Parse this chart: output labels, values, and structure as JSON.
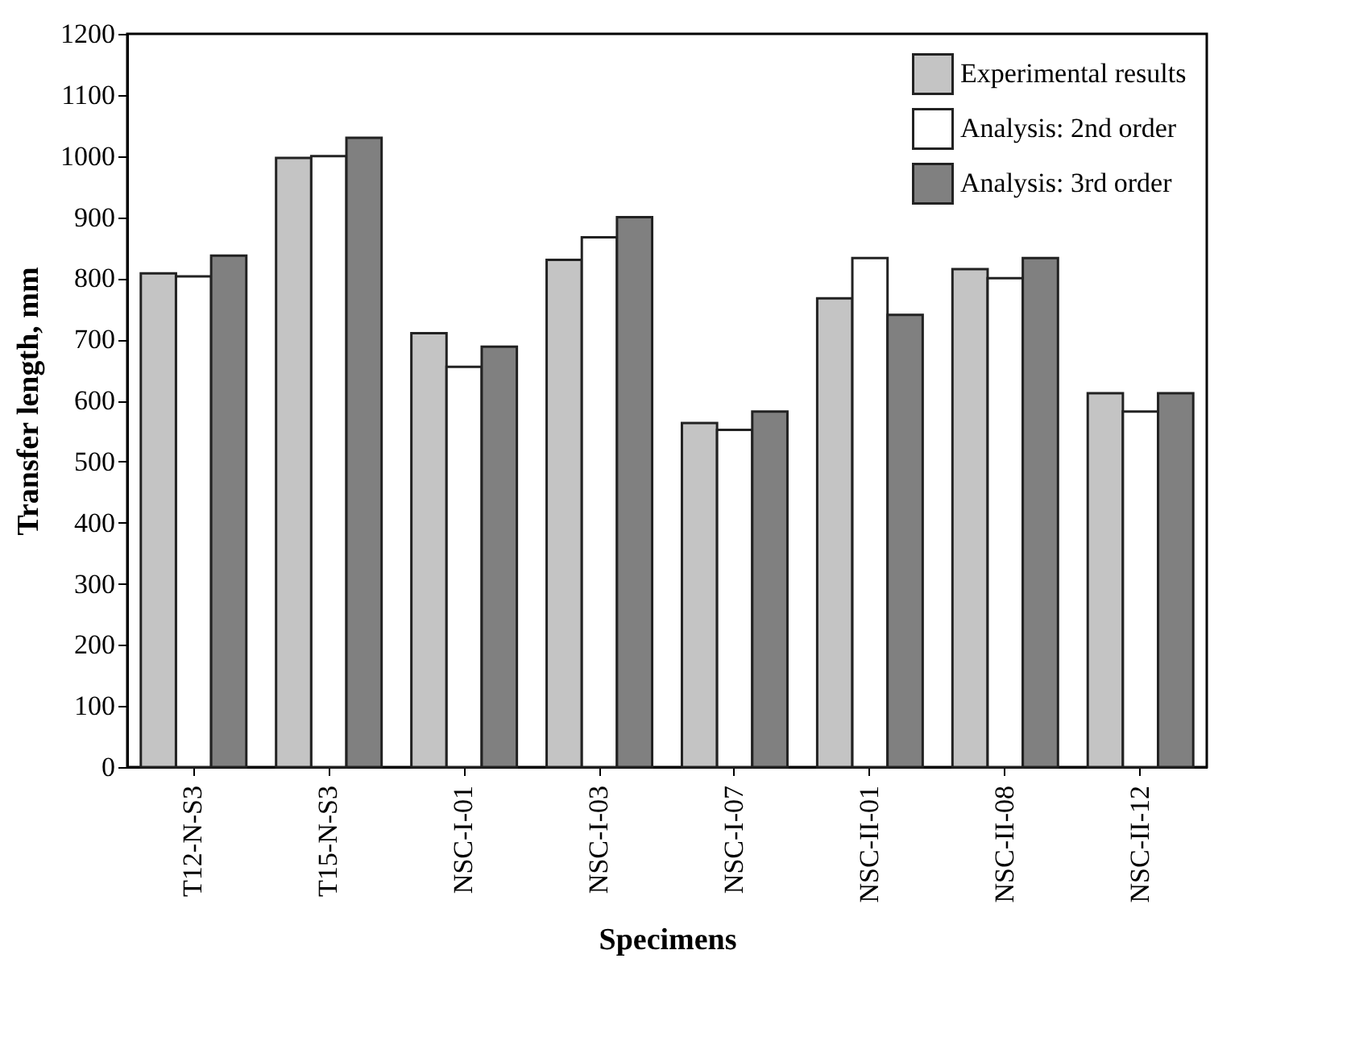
{
  "chart_data": {
    "type": "bar",
    "xlabel": "Specimens",
    "ylabel": "Transfer length, mm",
    "categories": [
      "T12-N-S3",
      "T15-N-S3",
      "NSC-I-01",
      "NSC-I-03",
      "NSC-I-07",
      "NSC-II-01",
      "NSC-II-08",
      "NSC-II-12"
    ],
    "series": [
      {
        "name": "Experimental results",
        "color": "#c4c4c4",
        "values": [
          808,
          997,
          710,
          830,
          563,
          767,
          815,
          612
        ]
      },
      {
        "name": "Analysis: 2nd order",
        "color": "#ffffff",
        "values": [
          803,
          1000,
          655,
          867,
          552,
          833,
          800,
          582
        ]
      },
      {
        "name": "Analysis: 3rd order",
        "color": "#808080",
        "values": [
          837,
          1030,
          688,
          900,
          582,
          740,
          833,
          612
        ]
      }
    ],
    "ylim": [
      0,
      1200
    ],
    "yticks": [
      0,
      100,
      200,
      300,
      400,
      500,
      600,
      700,
      800,
      900,
      1000,
      1100,
      1200
    ],
    "grid": false,
    "legend": "top right"
  }
}
